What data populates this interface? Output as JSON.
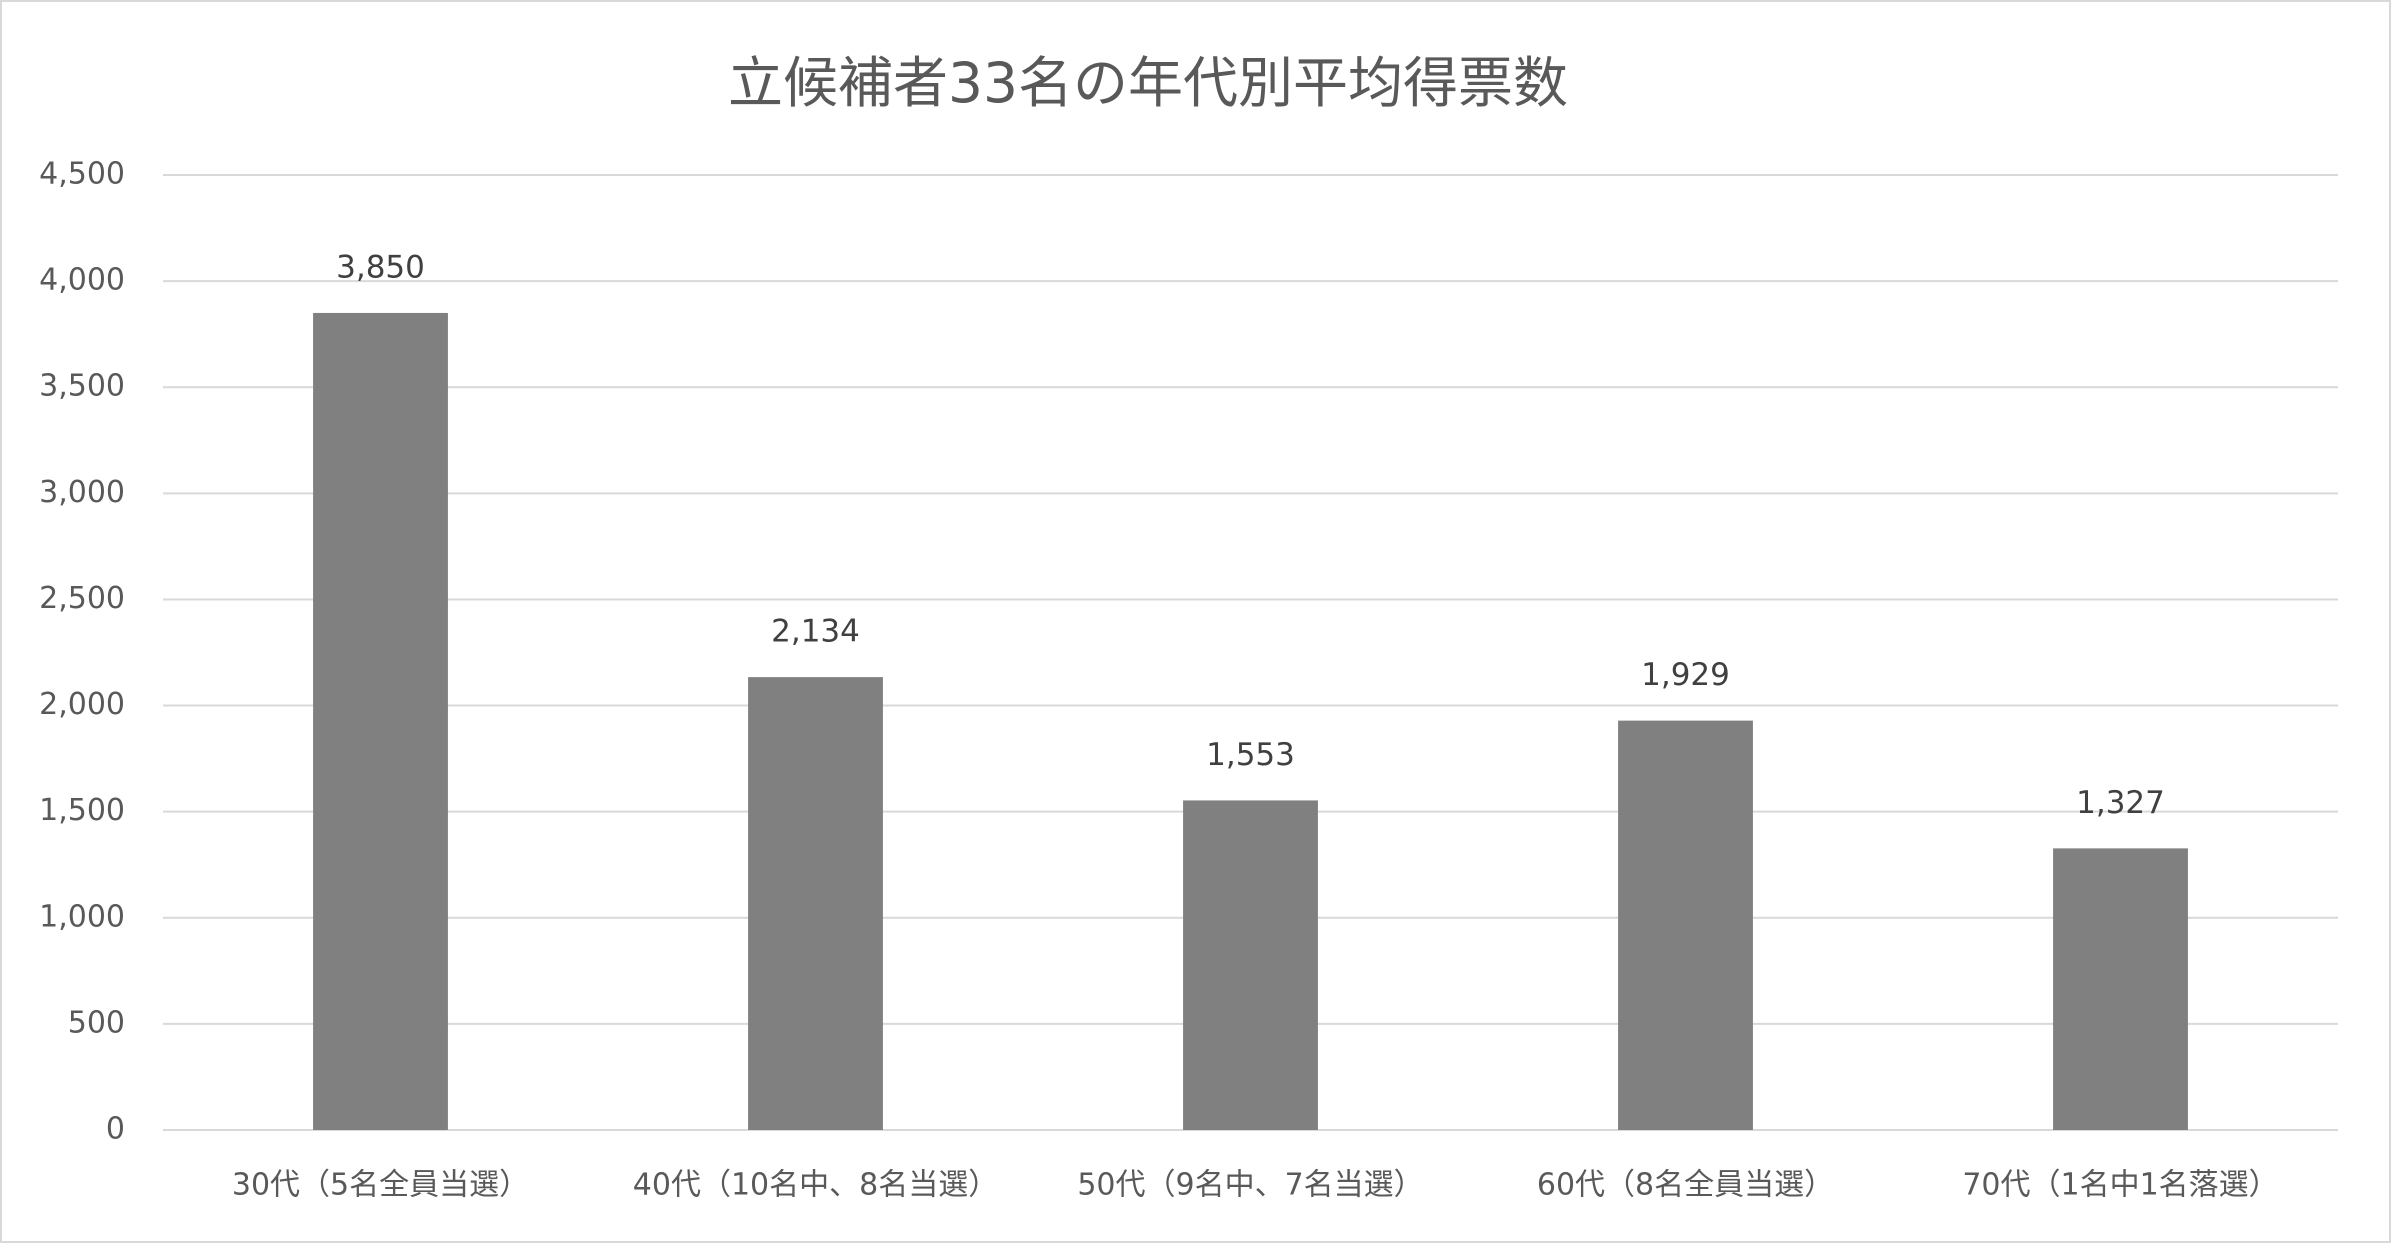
{
  "chart_data": {
    "type": "bar",
    "title": "立候補者33名の年代別平均得票数",
    "categories": [
      "30代（5名全員当選）",
      "40代（10名中、8名当選）",
      "50代（9名中、7名当選）",
      "60代（8名全員当選）",
      "70代（1名中1名落選）"
    ],
    "values": [
      3850,
      2134,
      1553,
      1929,
      1327
    ],
    "value_labels": [
      "3,850",
      "2,134",
      "1,553",
      "1,929",
      "1,327"
    ],
    "color": "#808080",
    "ylim": [
      0,
      4500
    ],
    "yticks": [
      0,
      500,
      {
        "value": 1000,
        "label": "1,000"
      },
      {
        "value": 1500,
        "label": "1,500"
      },
      {
        "value": 2000,
        "label": "2,000"
      },
      {
        "value": 2500,
        "label": "2,500"
      },
      {
        "value": 3000,
        "label": "3,000"
      },
      {
        "value": 3500,
        "label": "3,500"
      },
      {
        "value": 4000,
        "label": "4,000"
      },
      {
        "value": 4500,
        "label": "4,500"
      }
    ],
    "grid": true
  }
}
